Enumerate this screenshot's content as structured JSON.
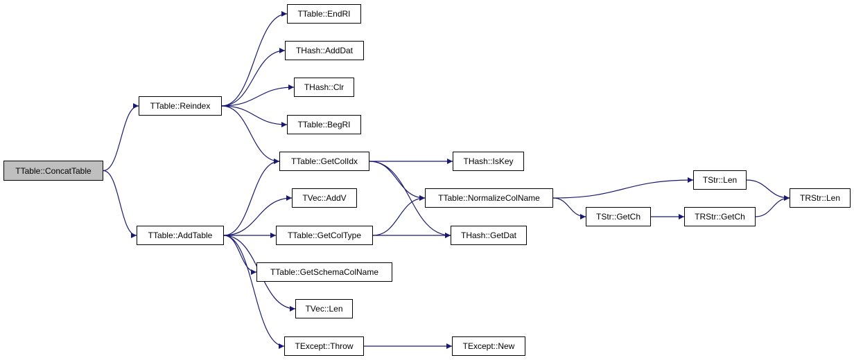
{
  "graph": {
    "root": "concat",
    "colors": {
      "edge": "#191970",
      "root_fill": "#bfbfbf",
      "node_fill": "#ffffff",
      "node_border": "#000000"
    },
    "nodes": {
      "concat": "TTable::ConcatTable",
      "reindex": "TTable::Reindex",
      "addtable": "TTable::AddTable",
      "endri": "TTable::EndRI",
      "adddat": "THash::AddDat",
      "clr": "THash::Clr",
      "begri": "TTable::BegRI",
      "getcolidx": "TTable::GetColIdx",
      "addv": "TVec::AddV",
      "getcoltype": "TTable::GetColType",
      "getschema": "TTable::GetSchemaColName",
      "veclen": "TVec::Len",
      "throw": "TExcept::Throw",
      "iskey": "THash::IsKey",
      "normalize": "TTable::NormalizeColName",
      "getdat": "THash::GetDat",
      "except_new": "TExcept::New",
      "strlen": "TStr::Len",
      "strgetch": "TStr::GetCh",
      "rstrgetch": "TRStr::GetCh",
      "rstrlen": "TRStr::Len"
    },
    "edges": [
      [
        "concat",
        "reindex"
      ],
      [
        "concat",
        "addtable"
      ],
      [
        "reindex",
        "endri"
      ],
      [
        "reindex",
        "adddat"
      ],
      [
        "reindex",
        "clr"
      ],
      [
        "reindex",
        "begri"
      ],
      [
        "reindex",
        "getcolidx"
      ],
      [
        "addtable",
        "getcolidx"
      ],
      [
        "addtable",
        "addv"
      ],
      [
        "addtable",
        "getcoltype"
      ],
      [
        "addtable",
        "getschema"
      ],
      [
        "addtable",
        "veclen"
      ],
      [
        "addtable",
        "throw"
      ],
      [
        "getcolidx",
        "iskey"
      ],
      [
        "getcolidx",
        "normalize"
      ],
      [
        "getcolidx",
        "getdat"
      ],
      [
        "getcoltype",
        "normalize"
      ],
      [
        "getcoltype",
        "getdat"
      ],
      [
        "throw",
        "except_new"
      ],
      [
        "normalize",
        "strlen"
      ],
      [
        "normalize",
        "strgetch"
      ],
      [
        "strlen",
        "rstrlen"
      ],
      [
        "strgetch",
        "rstrgetch"
      ],
      [
        "rstrgetch",
        "rstrlen"
      ]
    ]
  }
}
